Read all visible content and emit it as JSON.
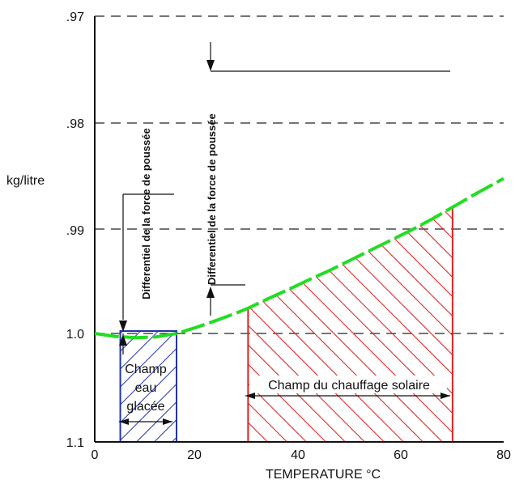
{
  "chart_data": {
    "type": "line",
    "xlabel": "TEMPERATURE °C",
    "ylabel": "kg/litre",
    "x_ticks": [
      0,
      20,
      40,
      60,
      80
    ],
    "y_ticks": [
      ".97",
      ".98",
      ".99",
      "1.0",
      "1.1"
    ],
    "xlim": [
      0,
      80
    ],
    "grid": "horizontal dashed",
    "series": [
      {
        "color": "#22dd22",
        "points": [
          [
            0,
            0
          ],
          [
            4,
            0.07
          ],
          [
            8,
            0.1
          ],
          [
            12,
            0.08
          ],
          [
            16,
            0.0
          ],
          [
            20,
            -0.15
          ],
          [
            24,
            -0.32
          ],
          [
            28,
            -0.5
          ],
          [
            30,
            -0.6
          ],
          [
            34,
            -0.83
          ],
          [
            38,
            -1.05
          ],
          [
            42,
            -1.28
          ],
          [
            46,
            -1.5
          ],
          [
            50,
            -1.74
          ],
          [
            54,
            -1.98
          ],
          [
            58,
            -2.22
          ],
          [
            62,
            -2.46
          ],
          [
            66,
            -2.72
          ],
          [
            70,
            -3.0
          ],
          [
            74,
            -3.28
          ],
          [
            78,
            -3.55
          ],
          [
            80,
            -3.68
          ]
        ]
      }
    ],
    "regions": [
      {
        "label_lines": [
          "Champ",
          "eau",
          "glacée"
        ],
        "x_range": [
          5,
          16
        ],
        "color": "#2233aa"
      },
      {
        "label_lines": [
          "Champ du chauffage solaire"
        ],
        "x_range": [
          30,
          70
        ],
        "color": "#dd2222"
      }
    ],
    "annotations": [
      {
        "text": "Differentiel de la force de poussée"
      },
      {
        "text": "Differentiel de la force de poussée"
      }
    ]
  }
}
